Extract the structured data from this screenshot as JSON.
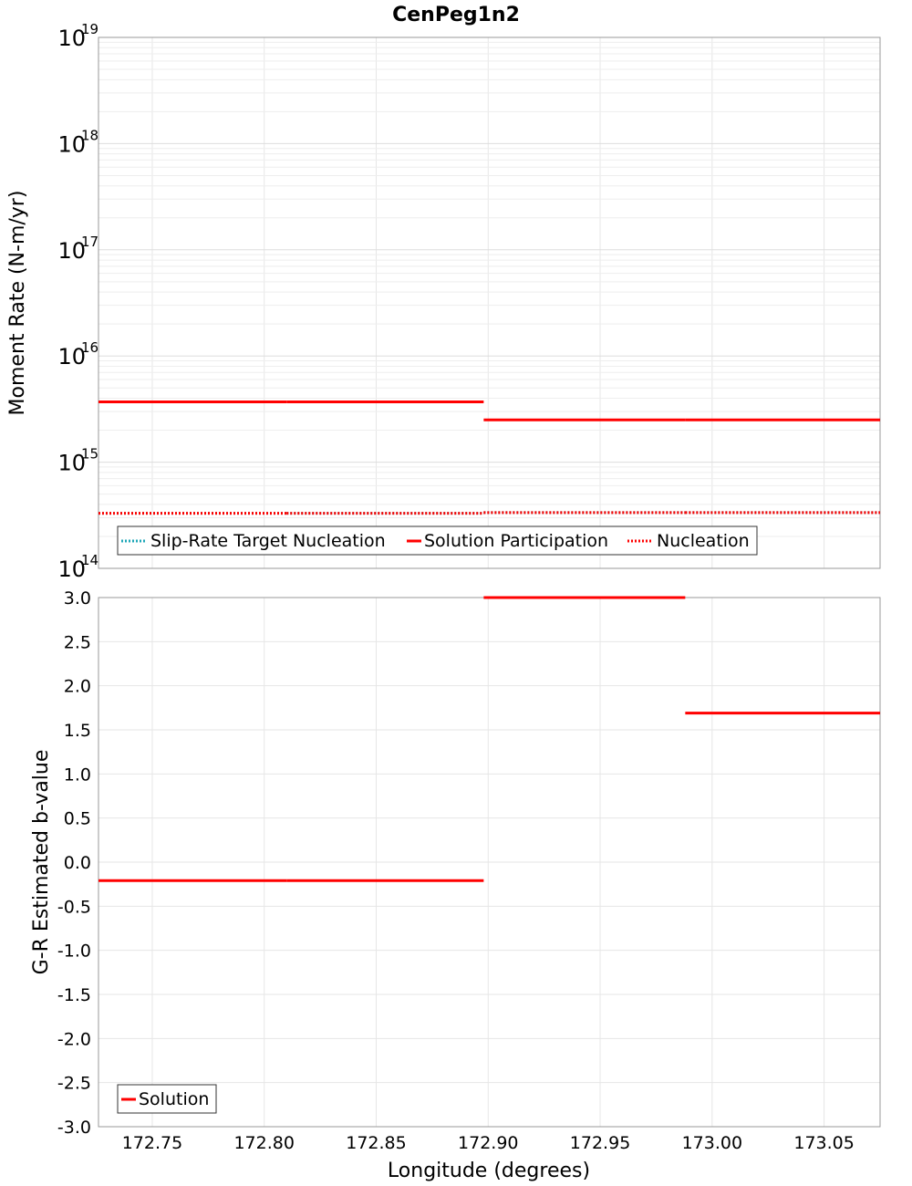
{
  "colors": {
    "red": "#ff0000",
    "cyan": "#1fa7b8",
    "grid": "#e6e6e6",
    "frame": "#999999"
  },
  "chart_data": [
    {
      "type": "line",
      "title": "CenPeg1n2",
      "xlabel": "Longitude (degrees)",
      "ylabel": "Moment Rate (N-m/yr)",
      "yscale": "log",
      "xlim": [
        172.726,
        173.075
      ],
      "ylim": [
        100000000000000.0,
        1e+19
      ],
      "y_ticks": [
        {
          "base": "10",
          "exp": "14"
        },
        {
          "base": "10",
          "exp": "15"
        },
        {
          "base": "10",
          "exp": "16"
        },
        {
          "base": "10",
          "exp": "17"
        },
        {
          "base": "10",
          "exp": "18"
        },
        {
          "base": "10",
          "exp": "19"
        }
      ],
      "legend_position": "bottom-left",
      "legend": [
        "Slip-Rate Target Nucleation",
        "Solution Participation",
        "Nucleation"
      ],
      "series": [
        {
          "name": "Slip-Rate Target Nucleation",
          "style": "dotted",
          "color": "#1fa7b8",
          "segments": [
            {
              "x": [
                172.726,
                172.81
              ],
              "y": 330000000000000.0
            },
            {
              "x": [
                172.81,
                172.898
              ],
              "y": 330000000000000.0
            },
            {
              "x": [
                172.898,
                172.988
              ],
              "y": 335000000000000.0
            },
            {
              "x": [
                172.988,
                173.075
              ],
              "y": 335000000000000.0
            }
          ]
        },
        {
          "name": "Solution Participation",
          "style": "solid",
          "color": "#ff0000",
          "segments": [
            {
              "x": [
                172.726,
                172.81
              ],
              "y": 3700000000000000.0
            },
            {
              "x": [
                172.81,
                172.898
              ],
              "y": 3700000000000000.0
            },
            {
              "x": [
                172.898,
                172.988
              ],
              "y": 2500000000000000.0
            },
            {
              "x": [
                172.988,
                173.075
              ],
              "y": 2500000000000000.0
            }
          ]
        },
        {
          "name": "Nucleation",
          "style": "dotted",
          "color": "#ff0000",
          "segments": [
            {
              "x": [
                172.726,
                172.81
              ],
              "y": 330000000000000.0
            },
            {
              "x": [
                172.81,
                172.898
              ],
              "y": 330000000000000.0
            },
            {
              "x": [
                172.898,
                172.988
              ],
              "y": 335000000000000.0
            },
            {
              "x": [
                172.988,
                173.075
              ],
              "y": 335000000000000.0
            }
          ]
        }
      ]
    },
    {
      "type": "line",
      "title": "",
      "xlabel": "Longitude (degrees)",
      "ylabel": "G-R Estimated b-value",
      "yscale": "linear",
      "xlim": [
        172.726,
        173.075
      ],
      "ylim": [
        -3.0,
        3.0
      ],
      "x_ticks": [
        "172.75",
        "172.80",
        "172.85",
        "172.90",
        "172.95",
        "173.00",
        "173.05"
      ],
      "y_ticks": [
        "3.0",
        "2.5",
        "2.0",
        "1.5",
        "1.0",
        "0.5",
        "0.0",
        "-0.5",
        "-1.0",
        "-1.5",
        "-2.0",
        "-2.5",
        "-3.0"
      ],
      "legend_position": "bottom-left",
      "legend": [
        "Solution"
      ],
      "series": [
        {
          "name": "Solution",
          "style": "solid",
          "color": "#ff0000",
          "segments": [
            {
              "x": [
                172.726,
                172.81
              ],
              "y": -0.21
            },
            {
              "x": [
                172.81,
                172.898
              ],
              "y": -0.21
            },
            {
              "x": [
                172.898,
                172.988
              ],
              "y": 3.0
            },
            {
              "x": [
                172.988,
                173.075
              ],
              "y": 1.69
            }
          ]
        }
      ]
    }
  ]
}
